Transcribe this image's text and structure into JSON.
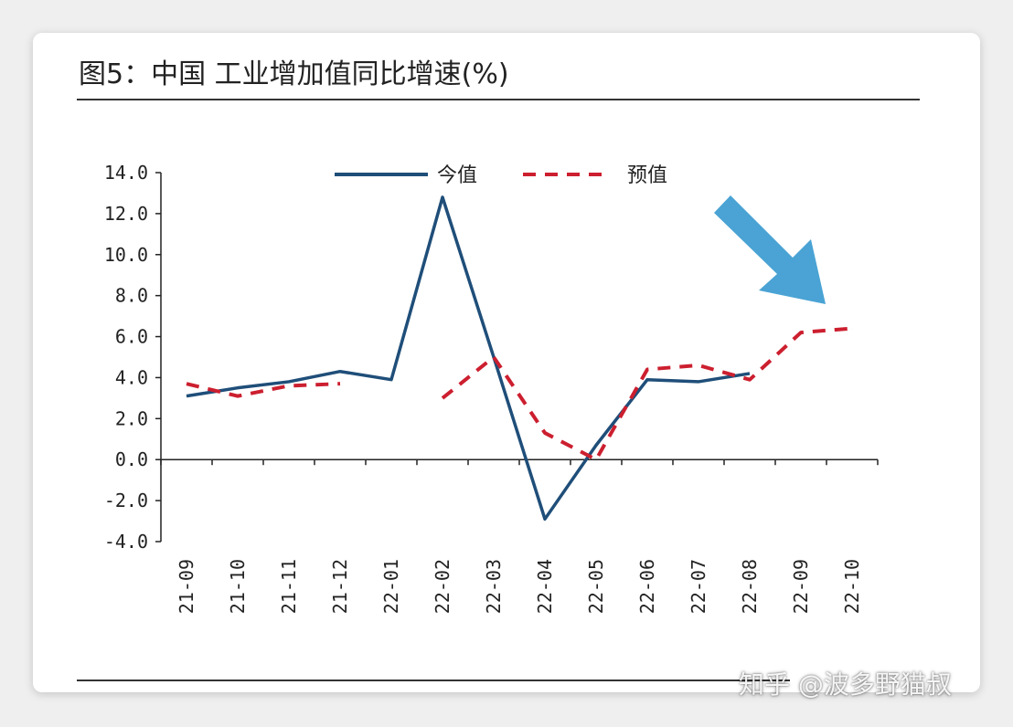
{
  "title": "图5：中国 工业增加值同比增速(%)",
  "watermark": "知乎 @波多野猫叔",
  "colors": {
    "actual": "#1f4e79",
    "expected": "#cc1f2f",
    "arrow": "#4aa3d4"
  },
  "chart_data": {
    "type": "line",
    "categories": [
      "21-09",
      "21-10",
      "21-11",
      "21-12",
      "22-01",
      "22-02",
      "22-03",
      "22-04",
      "22-05",
      "22-06",
      "22-07",
      "22-08",
      "22-09",
      "22-10"
    ],
    "series": [
      {
        "name": "今值",
        "style": "solid",
        "values": [
          3.1,
          3.5,
          3.8,
          4.3,
          3.9,
          12.8,
          5.0,
          -2.9,
          0.7,
          3.9,
          3.8,
          4.2,
          null,
          null
        ]
      },
      {
        "name": "预值",
        "style": "dashed",
        "values": [
          3.7,
          3.1,
          3.6,
          3.7,
          null,
          3.0,
          5.0,
          1.3,
          0.0,
          4.4,
          4.6,
          3.9,
          6.2,
          6.4
        ]
      }
    ],
    "yticks": [
      "14.0",
      "12.0",
      "10.0",
      "8.0",
      "6.0",
      "4.0",
      "2.0",
      "0.0",
      "-2.0",
      "-4.0"
    ],
    "ylim": [
      -4.0,
      14.0
    ],
    "legend_position": "top-center",
    "grid": false
  }
}
